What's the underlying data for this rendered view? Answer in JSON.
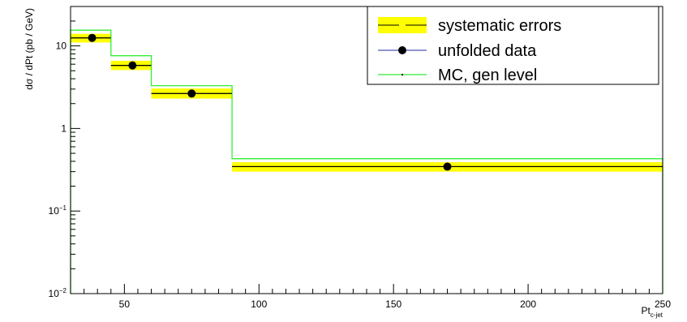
{
  "chart_data": {
    "type": "line",
    "title": "",
    "xlabel": "Pt",
    "xlabel_sub": "c-jet",
    "ylabel": "dσ / dPt (pb / GeV)",
    "xlim": [
      30,
      250
    ],
    "ylim": [
      0.01,
      30
    ],
    "yscale": "log",
    "grid": false,
    "legend_position": "top-right",
    "x_ticks": [
      {
        "value": 50,
        "label": "50"
      },
      {
        "value": 100,
        "label": "100"
      },
      {
        "value": 150,
        "label": "150"
      },
      {
        "value": 200,
        "label": "200"
      },
      {
        "value": 250,
        "label": "250"
      }
    ],
    "y_ticks": [
      {
        "value": 0.01,
        "base": "10",
        "exp": "−2"
      },
      {
        "value": 0.1,
        "base": "10",
        "exp": "−1"
      },
      {
        "value": 1,
        "base": "1",
        "exp": ""
      },
      {
        "value": 10,
        "base": "10",
        "exp": ""
      }
    ],
    "bins": [
      {
        "low": 30,
        "high": 45,
        "center": 38,
        "data": 12.5,
        "syst_low": 11.0,
        "syst_high": 14.0,
        "mc": 15.5
      },
      {
        "low": 45,
        "high": 60,
        "center": 53,
        "data": 5.8,
        "syst_low": 5.1,
        "syst_high": 6.6,
        "mc": 7.6
      },
      {
        "low": 60,
        "high": 90,
        "center": 75,
        "data": 2.65,
        "syst_low": 2.3,
        "syst_high": 3.05,
        "mc": 3.3
      },
      {
        "low": 90,
        "high": 250,
        "center": 170,
        "data": 0.345,
        "syst_low": 0.3,
        "syst_high": 0.39,
        "mc": 0.43
      }
    ],
    "series": [
      {
        "name": "systematic errors",
        "style": "band",
        "color": "#ffff00",
        "line_color": "#000000"
      },
      {
        "name": "unfolded data",
        "style": "points",
        "color": "#000000",
        "line_color": "#1f2a9e"
      },
      {
        "name": "MC, gen level",
        "style": "step",
        "color": "#33ee33"
      }
    ]
  }
}
